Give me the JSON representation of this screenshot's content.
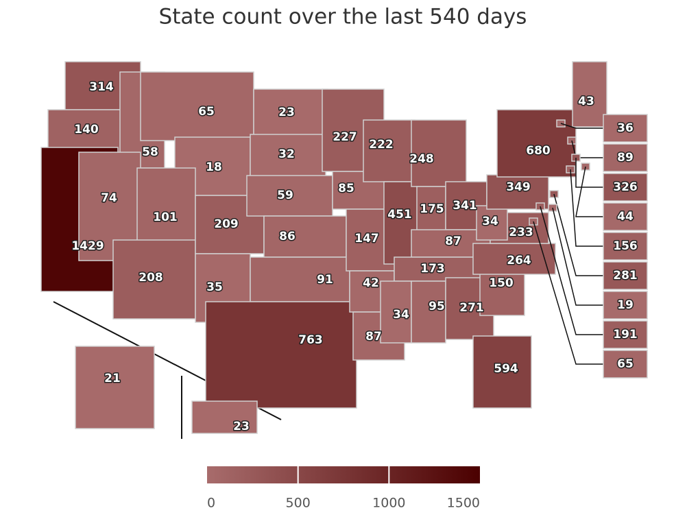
{
  "chart_data": {
    "type": "choropleth",
    "title": "State count over the last 540 days",
    "values": [
      314,
      140,
      1429,
      58,
      74,
      65,
      18,
      101,
      208,
      209,
      35,
      23,
      32,
      59,
      86,
      91,
      763,
      227,
      85,
      147,
      42,
      87,
      222,
      451,
      248,
      175,
      341,
      87,
      173,
      34,
      95,
      271,
      594,
      150,
      264,
      233,
      34,
      349,
      680,
      43,
      21,
      23
    ],
    "inset_values": [
      36,
      89,
      326,
      44,
      156,
      281,
      19,
      191,
      65
    ],
    "colorlim": [
      0,
      1500
    ],
    "colorticks": [
      0,
      500,
      1000,
      1500
    ],
    "colors": [
      "#a86c6c",
      "#4b0000"
    ]
  }
}
